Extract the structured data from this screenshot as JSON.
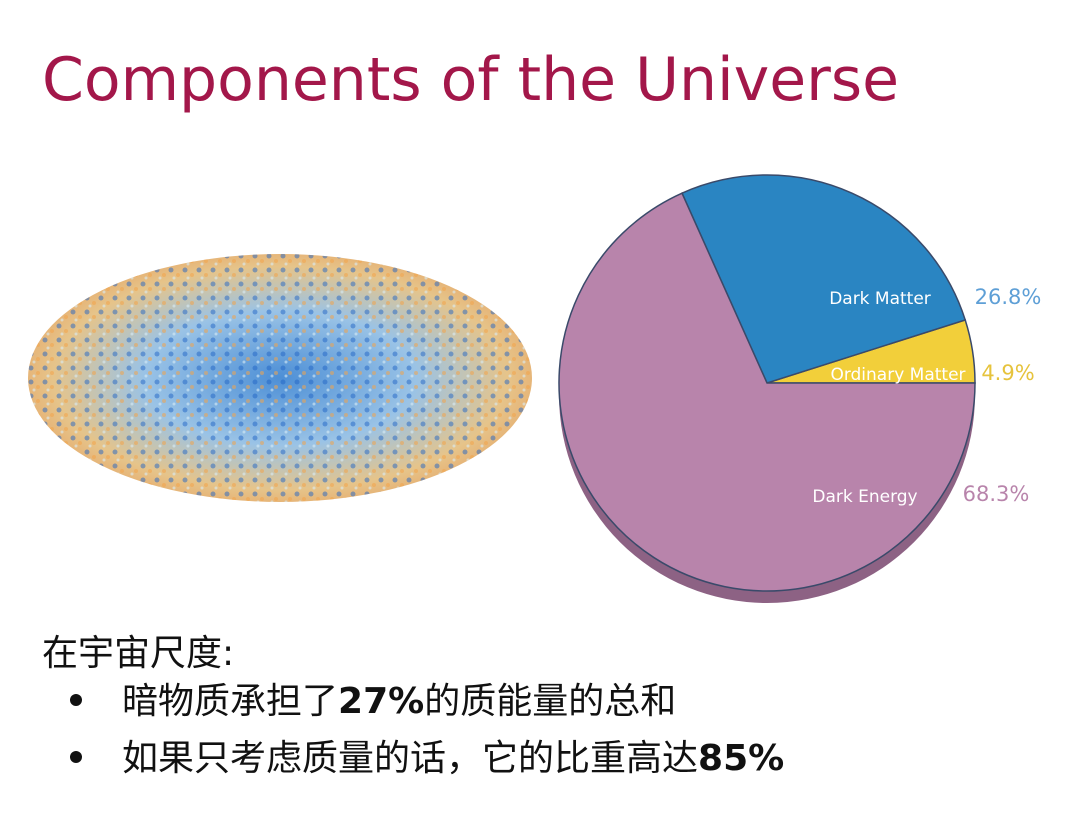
{
  "title": "Components of the Universe",
  "chart_data": {
    "type": "pie",
    "categories": [
      "Ordinary Matter",
      "Dark Matter",
      "Dark Energy"
    ],
    "values": [
      4.9,
      26.8,
      68.3
    ],
    "value_labels": [
      "4.9%",
      "26.8%",
      "68.3%"
    ],
    "colors": [
      "#f2cf3a",
      "#2a85c2",
      "#b884ab"
    ],
    "label_colors": [
      "#e6c33c",
      "#5e9fd6",
      "#b884ab"
    ]
  },
  "intro": "在宇宙尺度:",
  "bullets": [
    [
      "暗物质承担了",
      "27%",
      "的质能量的总和"
    ],
    [
      "如果只考虑质量的话，它的比重高达",
      "85%"
    ]
  ]
}
